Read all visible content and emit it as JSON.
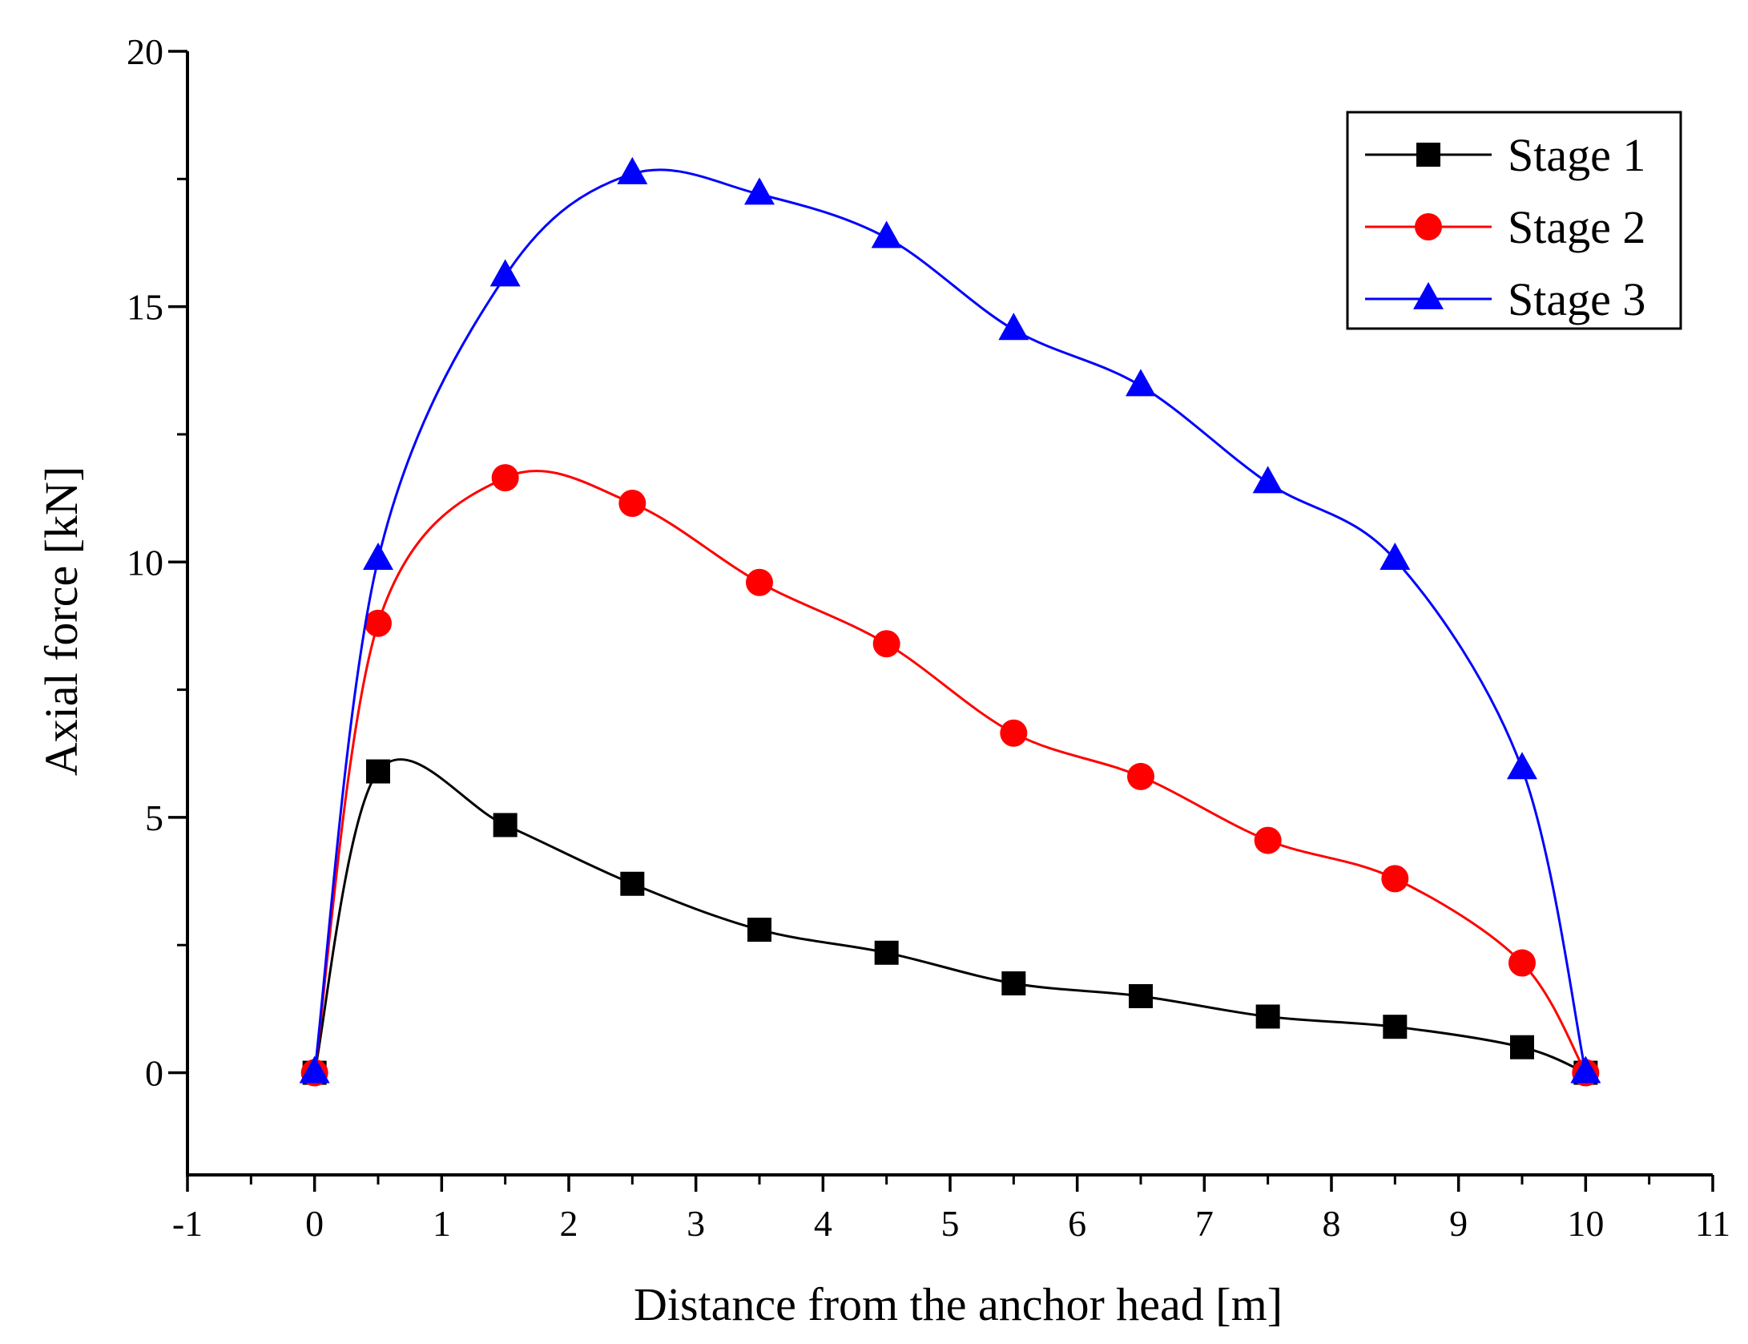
{
  "chart_data": {
    "type": "line",
    "title": "",
    "xlabel": "Distance from the anchor head [m]",
    "ylabel": "Axial force [kN]",
    "xlim": [
      -1,
      11
    ],
    "ylim": [
      -2,
      20
    ],
    "xticks": [
      -1,
      0,
      1,
      2,
      3,
      4,
      5,
      6,
      7,
      8,
      9,
      10,
      11
    ],
    "yticks": [
      0,
      5,
      10,
      15,
      20
    ],
    "x": [
      0,
      0.5,
      1.5,
      2.5,
      3.5,
      4.5,
      5.5,
      6.5,
      7.5,
      8.5,
      9.5,
      10
    ],
    "series": [
      {
        "name": "Stage 1",
        "color": "#000000",
        "marker": "square",
        "values": [
          0,
          5.9,
          4.85,
          3.7,
          2.8,
          2.35,
          1.75,
          1.5,
          1.1,
          0.9,
          0.5,
          0
        ]
      },
      {
        "name": "Stage 2",
        "color": "#ff0000",
        "marker": "circle",
        "values": [
          0,
          8.8,
          11.65,
          11.15,
          9.6,
          8.4,
          6.65,
          5.8,
          4.55,
          3.8,
          2.15,
          0
        ]
      },
      {
        "name": "Stage 3",
        "color": "#0000ff",
        "marker": "triangle",
        "values": [
          0,
          10.05,
          15.6,
          17.6,
          17.2,
          16.35,
          14.55,
          13.45,
          11.55,
          10.05,
          5.95,
          0
        ]
      }
    ],
    "legend_position": "top-right",
    "grid": false
  }
}
